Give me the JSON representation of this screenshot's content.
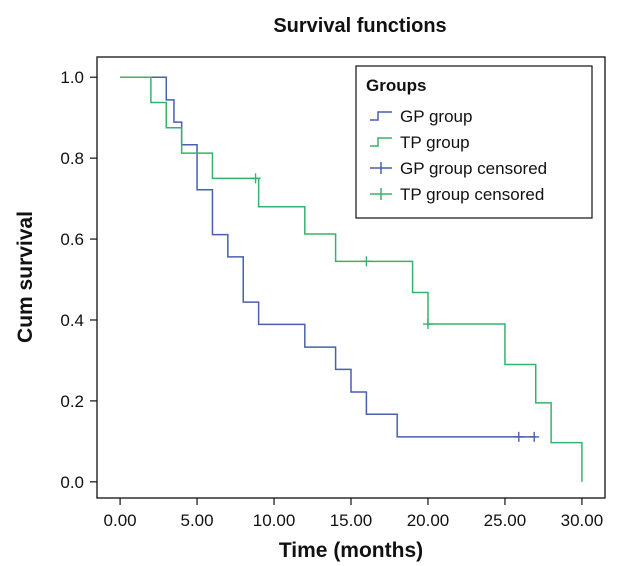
{
  "chart_data": {
    "type": "line",
    "title": "Survival functions",
    "xlabel": "Time (months)",
    "ylabel": "Cum survival",
    "xlim": [
      -1.5,
      31.5
    ],
    "ylim": [
      -0.04,
      1.05
    ],
    "x_ticks": [
      "0.00",
      "5.00",
      "10.00",
      "15.00",
      "20.00",
      "25.00",
      "30.00"
    ],
    "x_tick_values": [
      0,
      5,
      10,
      15,
      20,
      25,
      30
    ],
    "y_ticks": [
      "0.0",
      "0.2",
      "0.4",
      "0.6",
      "0.8",
      "1.0"
    ],
    "y_tick_values": [
      0,
      0.2,
      0.4,
      0.6,
      0.8,
      1.0
    ],
    "grid": false,
    "legend": {
      "title": "Groups",
      "placement": "top-right",
      "entries": [
        "GP group",
        "TP group",
        "GP group censored",
        "TP group censored"
      ]
    },
    "series": [
      {
        "name": "GP group",
        "step": true,
        "color": "#4a5fb0",
        "x": [
          0,
          3,
          3.5,
          4,
          5,
          6,
          7,
          8,
          9,
          12,
          14,
          15,
          16,
          18,
          27
        ],
        "y": [
          1.0,
          0.944,
          0.889,
          0.833,
          0.722,
          0.611,
          0.556,
          0.444,
          0.389,
          0.333,
          0.278,
          0.222,
          0.167,
          0.111,
          0.111
        ]
      },
      {
        "name": "TP group",
        "step": true,
        "color": "#36b36a",
        "x": [
          0,
          2,
          3,
          4,
          6,
          9,
          12,
          14,
          19,
          20,
          25,
          27,
          28,
          30,
          30
        ],
        "y": [
          1.0,
          0.9375,
          0.875,
          0.8125,
          0.75,
          0.68,
          0.6125,
          0.545,
          0.468,
          0.39,
          0.29,
          0.195,
          0.097,
          0.097,
          0.0
        ]
      }
    ],
    "censored": [
      {
        "name": "GP group censored",
        "color": "#4a5fb0",
        "points": [
          [
            25.9,
            0.111
          ],
          [
            26.9,
            0.111
          ]
        ]
      },
      {
        "name": "TP group censored",
        "color": "#36b36a",
        "points": [
          [
            8.8,
            0.75
          ],
          [
            16,
            0.545
          ],
          [
            20,
            0.39
          ]
        ]
      }
    ]
  }
}
